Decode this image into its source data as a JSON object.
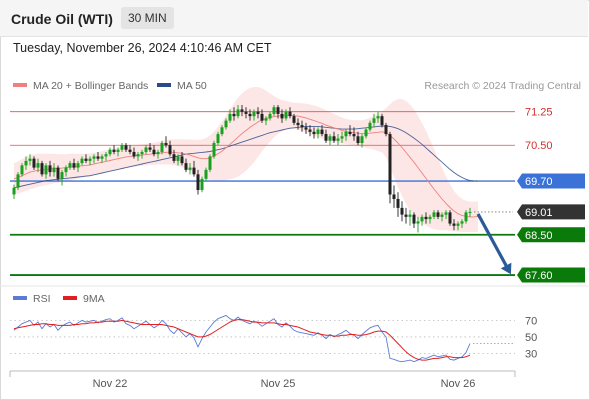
{
  "header": {
    "title": "Crude Oil (WTI)",
    "timeframe": "30 MIN",
    "datetime": "Tuesday, November 26, 2024 4:10:46 AM CET"
  },
  "legend_main": [
    {
      "label": "MA 20 + Bollinger Bands",
      "color": "#f08080"
    },
    {
      "label": "MA 50",
      "color": "#2b4a8a"
    }
  ],
  "credit": "Research © 2024 Trading Central",
  "legend_rsi": [
    {
      "label": "RSI",
      "color": "#5b7bd5"
    },
    {
      "label": "9MA",
      "color": "#e02020"
    }
  ],
  "chart_data": {
    "type": "candlestick",
    "price_axis": {
      "min": 67.4,
      "max": 71.6
    },
    "levels": [
      {
        "value": 71.25,
        "label": "71.25",
        "kind": "resistance",
        "color": "#e05050"
      },
      {
        "value": 70.5,
        "label": "70.50",
        "kind": "resistance",
        "color": "#e05050"
      },
      {
        "value": 69.7,
        "label": "69.70",
        "kind": "pivot",
        "color": "#3a72d8"
      },
      {
        "value": 69.01,
        "label": "69.01",
        "kind": "last-price",
        "color": "#333333"
      },
      {
        "value": 68.5,
        "label": "68.50",
        "kind": "support",
        "color": "#0a7a0a"
      },
      {
        "value": 67.6,
        "label": "67.60",
        "kind": "support",
        "color": "#0a7a0a"
      }
    ],
    "x_ticks": [
      {
        "index": 24,
        "label": "Nov 22"
      },
      {
        "index": 66,
        "label": "Nov 25"
      },
      {
        "index": 111,
        "label": "Nov 26"
      }
    ],
    "candles": [
      [
        69.4,
        69.62,
        69.3,
        69.55
      ],
      [
        69.55,
        69.9,
        69.5,
        69.85
      ],
      [
        69.85,
        70.1,
        69.8,
        70.05
      ],
      [
        70.05,
        70.25,
        69.95,
        70.15
      ],
      [
        70.15,
        70.3,
        70.05,
        70.2
      ],
      [
        70.2,
        70.25,
        69.95,
        70.0
      ],
      [
        70.0,
        70.2,
        69.9,
        70.1
      ],
      [
        70.1,
        70.15,
        69.8,
        69.85
      ],
      [
        69.85,
        70.1,
        69.75,
        70.05
      ],
      [
        70.05,
        70.15,
        69.8,
        69.9
      ],
      [
        69.9,
        70.1,
        69.8,
        70.0
      ],
      [
        70.0,
        70.05,
        69.7,
        69.75
      ],
      [
        69.75,
        69.95,
        69.6,
        69.9
      ],
      [
        69.9,
        70.05,
        69.8,
        70.0
      ],
      [
        70.0,
        70.15,
        69.95,
        70.1
      ],
      [
        70.1,
        70.2,
        69.95,
        70.0
      ],
      [
        70.0,
        70.15,
        69.9,
        70.1
      ],
      [
        70.1,
        70.25,
        70.05,
        70.2
      ],
      [
        70.2,
        70.3,
        70.1,
        70.15
      ],
      [
        70.15,
        70.25,
        70.05,
        70.2
      ],
      [
        70.2,
        70.3,
        70.1,
        70.25
      ],
      [
        70.25,
        70.35,
        70.15,
        70.2
      ],
      [
        70.2,
        70.3,
        70.1,
        70.25
      ],
      [
        70.25,
        70.35,
        70.15,
        70.3
      ],
      [
        70.3,
        70.45,
        70.25,
        70.4
      ],
      [
        70.4,
        70.5,
        70.3,
        70.35
      ],
      [
        70.35,
        70.45,
        70.25,
        70.4
      ],
      [
        70.4,
        70.55,
        70.35,
        70.5
      ],
      [
        70.5,
        70.55,
        70.35,
        70.4
      ],
      [
        70.4,
        70.5,
        70.3,
        70.35
      ],
      [
        70.35,
        70.45,
        70.2,
        70.25
      ],
      [
        70.25,
        70.35,
        70.15,
        70.3
      ],
      [
        70.3,
        70.4,
        70.2,
        70.35
      ],
      [
        70.35,
        70.5,
        70.3,
        70.45
      ],
      [
        70.45,
        70.55,
        70.35,
        70.4
      ],
      [
        70.4,
        70.5,
        70.25,
        70.3
      ],
      [
        70.3,
        70.4,
        70.2,
        70.35
      ],
      [
        70.35,
        70.6,
        70.3,
        70.55
      ],
      [
        70.55,
        70.7,
        70.45,
        70.5
      ],
      [
        70.5,
        70.6,
        70.25,
        70.3
      ],
      [
        70.3,
        70.4,
        70.1,
        70.15
      ],
      [
        70.15,
        70.3,
        70.05,
        70.25
      ],
      [
        70.25,
        70.35,
        70.05,
        70.1
      ],
      [
        70.1,
        70.2,
        69.9,
        69.95
      ],
      [
        69.95,
        70.1,
        69.85,
        70.0
      ],
      [
        70.0,
        70.15,
        69.8,
        69.85
      ],
      [
        69.85,
        69.95,
        69.4,
        69.5
      ],
      [
        69.5,
        69.8,
        69.45,
        69.75
      ],
      [
        69.75,
        70.0,
        69.7,
        69.95
      ],
      [
        69.95,
        70.3,
        69.9,
        70.25
      ],
      [
        70.25,
        70.6,
        70.2,
        70.55
      ],
      [
        70.55,
        70.8,
        70.5,
        70.75
      ],
      [
        70.75,
        70.95,
        70.7,
        70.9
      ],
      [
        70.9,
        71.1,
        70.85,
        71.05
      ],
      [
        71.05,
        71.3,
        71.0,
        71.2
      ],
      [
        71.2,
        71.35,
        71.05,
        71.15
      ],
      [
        71.15,
        71.4,
        71.1,
        71.3
      ],
      [
        71.3,
        71.4,
        71.15,
        71.25
      ],
      [
        71.25,
        71.35,
        71.1,
        71.2
      ],
      [
        71.2,
        71.3,
        71.05,
        71.15
      ],
      [
        71.15,
        71.3,
        71.05,
        71.25
      ],
      [
        71.25,
        71.35,
        71.1,
        71.2
      ],
      [
        71.2,
        71.3,
        71.0,
        71.05
      ],
      [
        71.05,
        71.15,
        70.95,
        71.1
      ],
      [
        71.1,
        71.25,
        71.05,
        71.2
      ],
      [
        71.2,
        71.4,
        71.15,
        71.35
      ],
      [
        71.35,
        71.4,
        71.1,
        71.2
      ],
      [
        71.2,
        71.3,
        71.0,
        71.1
      ],
      [
        71.1,
        71.3,
        71.05,
        71.25
      ],
      [
        71.25,
        71.35,
        71.1,
        71.15
      ],
      [
        71.15,
        71.2,
        70.95,
        71.0
      ],
      [
        71.0,
        71.1,
        70.85,
        70.95
      ],
      [
        70.95,
        71.05,
        70.8,
        70.9
      ],
      [
        70.9,
        71.0,
        70.75,
        70.85
      ],
      [
        70.85,
        70.95,
        70.7,
        70.8
      ],
      [
        70.8,
        70.9,
        70.65,
        70.75
      ],
      [
        70.75,
        70.9,
        70.65,
        70.85
      ],
      [
        70.85,
        70.95,
        70.7,
        70.75
      ],
      [
        70.75,
        70.85,
        70.55,
        70.6
      ],
      [
        70.6,
        70.75,
        70.5,
        70.7
      ],
      [
        70.7,
        70.8,
        70.55,
        70.6
      ],
      [
        70.6,
        70.75,
        70.5,
        70.65
      ],
      [
        70.65,
        70.8,
        70.55,
        70.7
      ],
      [
        70.7,
        70.85,
        70.6,
        70.8
      ],
      [
        70.8,
        70.95,
        70.7,
        70.75
      ],
      [
        70.75,
        70.9,
        70.6,
        70.7
      ],
      [
        70.7,
        70.8,
        70.5,
        70.55
      ],
      [
        70.55,
        70.75,
        70.45,
        70.7
      ],
      [
        70.7,
        70.9,
        70.65,
        70.85
      ],
      [
        70.85,
        71.05,
        70.8,
        71.0
      ],
      [
        71.0,
        71.2,
        70.9,
        71.1
      ],
      [
        71.1,
        71.25,
        71.0,
        71.15
      ],
      [
        71.15,
        71.2,
        70.9,
        70.95
      ],
      [
        70.95,
        71.0,
        70.7,
        70.75
      ],
      [
        70.75,
        70.8,
        69.2,
        69.4
      ],
      [
        69.4,
        69.6,
        69.1,
        69.3
      ],
      [
        69.3,
        69.45,
        68.9,
        69.1
      ],
      [
        69.1,
        69.25,
        68.8,
        68.95
      ],
      [
        68.95,
        69.1,
        68.75,
        68.9
      ],
      [
        68.9,
        69.05,
        68.7,
        68.95
      ],
      [
        68.95,
        69.0,
        68.65,
        68.75
      ],
      [
        68.75,
        68.9,
        68.55,
        68.8
      ],
      [
        68.8,
        68.95,
        68.7,
        68.9
      ],
      [
        68.9,
        69.0,
        68.75,
        68.85
      ],
      [
        68.85,
        68.95,
        68.75,
        68.9
      ],
      [
        68.9,
        69.05,
        68.85,
        69.0
      ],
      [
        69.0,
        69.05,
        68.85,
        68.9
      ],
      [
        68.9,
        69.0,
        68.8,
        68.95
      ],
      [
        68.95,
        69.05,
        68.85,
        69.0
      ],
      [
        69.0,
        69.05,
        68.7,
        68.75
      ],
      [
        68.75,
        68.85,
        68.6,
        68.7
      ],
      [
        68.7,
        68.8,
        68.6,
        68.75
      ],
      [
        68.75,
        68.85,
        68.65,
        68.8
      ],
      [
        68.8,
        69.05,
        68.75,
        69.0
      ],
      [
        69.0,
        69.1,
        68.9,
        69.01
      ]
    ],
    "ma20": [
      69.75,
      69.78,
      69.82,
      69.86,
      69.9,
      69.92,
      69.94,
      69.95,
      69.96,
      69.97,
      69.98,
      69.98,
      69.99,
      70.0,
      70.01,
      70.02,
      70.03,
      70.04,
      70.05,
      70.06,
      70.08,
      70.1,
      70.12,
      70.14,
      70.16,
      70.18,
      70.2,
      70.22,
      70.24,
      70.25,
      70.26,
      70.27,
      70.28,
      70.29,
      70.3,
      70.31,
      70.32,
      70.33,
      70.34,
      70.35,
      70.34,
      70.33,
      70.32,
      70.3,
      70.28,
      70.25,
      70.22,
      70.2,
      70.2,
      70.22,
      70.26,
      70.31,
      70.37,
      70.44,
      70.52,
      70.6,
      70.68,
      70.76,
      70.83,
      70.9,
      70.96,
      71.02,
      71.07,
      71.1,
      71.12,
      71.14,
      71.15,
      71.16,
      71.17,
      71.17,
      71.16,
      71.15,
      71.13,
      71.11,
      71.08,
      71.05,
      71.02,
      70.99,
      70.95,
      70.92,
      70.89,
      70.86,
      70.83,
      70.81,
      70.79,
      70.78,
      70.77,
      70.76,
      70.76,
      70.77,
      70.78,
      70.79,
      70.8,
      70.78,
      70.72,
      70.64,
      70.55,
      70.45,
      70.34,
      70.23,
      70.12,
      70.0,
      69.88,
      69.76,
      69.64,
      69.52,
      69.41,
      69.3,
      69.2,
      69.11,
      69.03,
      68.97,
      68.93,
      68.91,
      68.9,
      68.9,
      68.91
    ],
    "bb_width": [
      0.35,
      0.36,
      0.37,
      0.38,
      0.38,
      0.38,
      0.37,
      0.36,
      0.35,
      0.34,
      0.33,
      0.32,
      0.31,
      0.3,
      0.3,
      0.29,
      0.28,
      0.27,
      0.26,
      0.26,
      0.25,
      0.25,
      0.25,
      0.25,
      0.24,
      0.24,
      0.24,
      0.24,
      0.24,
      0.24,
      0.24,
      0.24,
      0.24,
      0.24,
      0.24,
      0.25,
      0.25,
      0.26,
      0.27,
      0.28,
      0.29,
      0.3,
      0.31,
      0.33,
      0.35,
      0.37,
      0.4,
      0.43,
      0.46,
      0.5,
      0.55,
      0.6,
      0.66,
      0.72,
      0.78,
      0.84,
      0.88,
      0.9,
      0.9,
      0.88,
      0.84,
      0.78,
      0.7,
      0.62,
      0.54,
      0.46,
      0.4,
      0.35,
      0.32,
      0.3,
      0.29,
      0.3,
      0.31,
      0.32,
      0.33,
      0.34,
      0.34,
      0.34,
      0.33,
      0.32,
      0.31,
      0.3,
      0.29,
      0.28,
      0.28,
      0.28,
      0.29,
      0.3,
      0.32,
      0.35,
      0.38,
      0.42,
      0.46,
      0.55,
      0.7,
      0.85,
      0.98,
      1.08,
      1.15,
      1.18,
      1.18,
      1.16,
      1.12,
      1.06,
      0.98,
      0.9,
      0.8,
      0.7,
      0.6,
      0.52,
      0.45,
      0.4,
      0.37,
      0.35,
      0.34,
      0.34,
      0.34
    ],
    "ma50": [
      69.55,
      69.57,
      69.59,
      69.61,
      69.63,
      69.65,
      69.67,
      69.69,
      69.71,
      69.72,
      69.73,
      69.74,
      69.75,
      69.76,
      69.77,
      69.78,
      69.79,
      69.8,
      69.81,
      69.82,
      69.84,
      69.86,
      69.88,
      69.9,
      69.92,
      69.94,
      69.96,
      69.98,
      70.0,
      70.02,
      70.04,
      70.06,
      70.08,
      70.1,
      70.12,
      70.14,
      70.16,
      70.18,
      70.2,
      70.22,
      70.24,
      70.26,
      70.28,
      70.3,
      70.31,
      70.32,
      70.33,
      70.34,
      70.35,
      70.36,
      70.38,
      70.4,
      70.42,
      70.45,
      70.48,
      70.51,
      70.54,
      70.57,
      70.6,
      70.63,
      70.66,
      70.69,
      70.72,
      70.75,
      70.78,
      70.8,
      70.82,
      70.84,
      70.86,
      70.88,
      70.89,
      70.9,
      70.91,
      70.92,
      70.92,
      70.92,
      70.92,
      70.91,
      70.9,
      70.89,
      70.88,
      70.87,
      70.86,
      70.86,
      70.86,
      70.86,
      70.87,
      70.88,
      70.89,
      70.9,
      70.91,
      70.92,
      70.93,
      70.93,
      70.92,
      70.9,
      70.87,
      70.83,
      70.78,
      70.72,
      70.66,
      70.59,
      70.52,
      70.44,
      70.36,
      70.28,
      70.2,
      70.12,
      70.04,
      69.96,
      69.89,
      69.83,
      69.78,
      69.74,
      69.71,
      69.7,
      69.7
    ],
    "projection": {
      "from": 69.01,
      "to": 67.6
    },
    "rsi_axis": {
      "min": 10,
      "max": 85,
      "ticks": [
        70,
        50,
        30
      ]
    },
    "rsi": [
      58,
      62,
      66,
      68,
      70,
      64,
      68,
      60,
      66,
      62,
      65,
      58,
      63,
      66,
      68,
      64,
      67,
      70,
      68,
      69,
      70,
      67,
      69,
      71,
      72,
      68,
      70,
      73,
      66,
      64,
      60,
      63,
      66,
      69,
      65,
      61,
      64,
      70,
      66,
      58,
      54,
      60,
      55,
      50,
      54,
      49,
      38,
      48,
      56,
      62,
      68,
      72,
      74,
      76,
      72,
      70,
      74,
      70,
      68,
      66,
      69,
      67,
      63,
      66,
      69,
      72,
      65,
      62,
      67,
      63,
      58,
      56,
      55,
      54,
      53,
      52,
      55,
      52,
      48,
      53,
      50,
      53,
      55,
      58,
      54,
      52,
      48,
      53,
      57,
      61,
      63,
      64,
      56,
      50,
      24,
      23,
      21,
      20,
      21,
      22,
      20,
      22,
      25,
      24,
      26,
      28,
      26,
      27,
      28,
      23,
      22,
      24,
      26,
      31,
      42
    ],
    "rsi_ma": [
      60,
      61,
      62,
      63,
      64,
      65,
      65,
      66,
      66,
      65,
      65,
      64,
      64,
      64,
      64,
      65,
      65,
      66,
      66,
      67,
      67,
      68,
      68,
      69,
      69,
      69,
      69,
      70,
      69,
      68,
      67,
      66,
      65,
      65,
      65,
      65,
      65,
      65,
      64,
      63,
      62,
      60,
      58,
      56,
      54,
      52,
      50,
      50,
      51,
      53,
      56,
      59,
      62,
      65,
      68,
      70,
      71,
      71,
      70,
      69,
      68,
      68,
      67,
      67,
      67,
      67,
      66,
      65,
      65,
      64,
      63,
      62,
      60,
      58,
      56,
      55,
      54,
      53,
      52,
      52,
      51,
      51,
      52,
      52,
      53,
      53,
      52,
      52,
      53,
      54,
      56,
      57,
      57,
      56,
      52,
      47,
      42,
      37,
      32,
      28,
      25,
      23,
      22,
      22,
      23,
      24,
      24,
      25,
      26,
      26,
      25,
      25,
      25,
      26,
      28
    ]
  }
}
